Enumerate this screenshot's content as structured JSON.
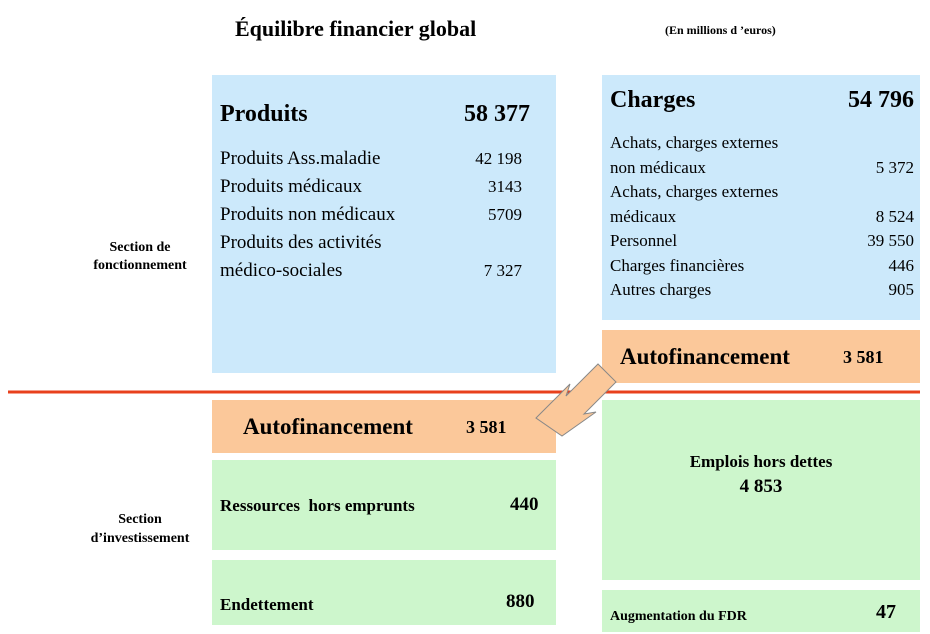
{
  "header": {
    "title": "Équilibre financier global",
    "subtitle": "(En millions d ’euros)"
  },
  "sections": {
    "operating": [
      "Section de",
      "fonctionnement"
    ],
    "investment": [
      "Section",
      "d’investissement"
    ]
  },
  "products": {
    "label": "Produits",
    "total": "58 377",
    "items": [
      {
        "label": [
          "Produits Ass.maladie"
        ],
        "value": "42 198"
      },
      {
        "label": [
          "Produits médicaux"
        ],
        "value": "3143"
      },
      {
        "label": [
          "Produits non médicaux"
        ],
        "value": "5709"
      },
      {
        "label": [
          "Produits des activités",
          "médico-sociales"
        ],
        "value": "7 327"
      }
    ]
  },
  "charges": {
    "label": "Charges",
    "total": "54 796",
    "items": [
      {
        "label": [
          "Achats, charges externes",
          "non médicaux"
        ],
        "value": "5 372"
      },
      {
        "label": [
          "Achats, charges externes",
          "médicaux"
        ],
        "value": "8 524"
      },
      {
        "label": [
          "Personnel"
        ],
        "value": "39 550"
      },
      {
        "label": [
          "Charges financières"
        ],
        "value": "446"
      },
      {
        "label": [
          "Autres charges"
        ],
        "value": "905"
      }
    ]
  },
  "self_financing": {
    "label": "Autofinancement",
    "value": "3 581"
  },
  "resources": {
    "label": "Ressources  hors emprunts",
    "value": "440"
  },
  "debt": {
    "label": "Endettement",
    "value": "880"
  },
  "uses": {
    "label": "Emplois hors dettes",
    "value": "4 853"
  },
  "fdr": {
    "label": "Augmentation du FDR",
    "value": "47"
  }
}
